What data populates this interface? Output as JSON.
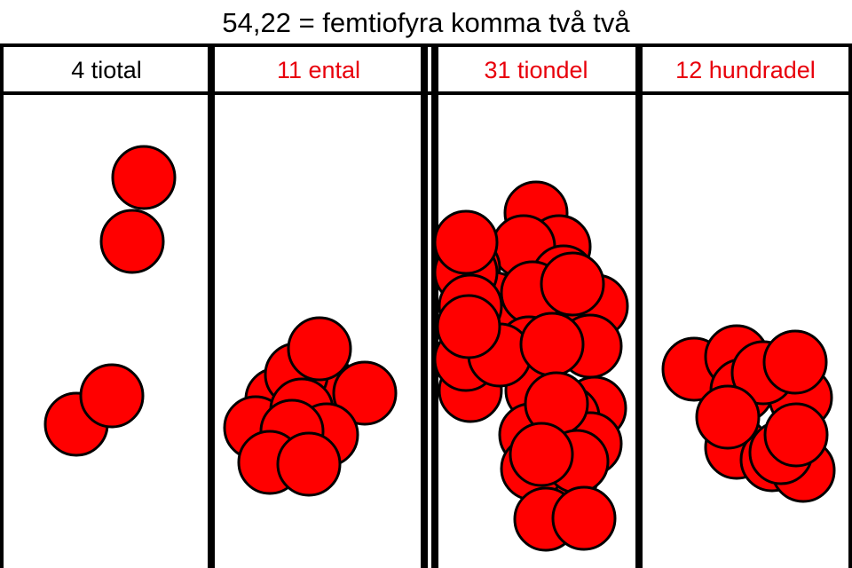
{
  "title": "54,22 = femtiofyra komma två två",
  "colors": {
    "label_black": "#000000",
    "label_red": "#e8000b",
    "counter": "#ff0000",
    "border": "#000000"
  },
  "columns": [
    {
      "label": "4 tiotal",
      "label_color": "black",
      "count": 4
    },
    {
      "label": "11 ental",
      "label_color": "red",
      "count": 11
    },
    {
      "label": "31 tiondel",
      "label_color": "red",
      "count": 31
    },
    {
      "label": "12 hundradel",
      "label_color": "red",
      "count": 12
    }
  ]
}
